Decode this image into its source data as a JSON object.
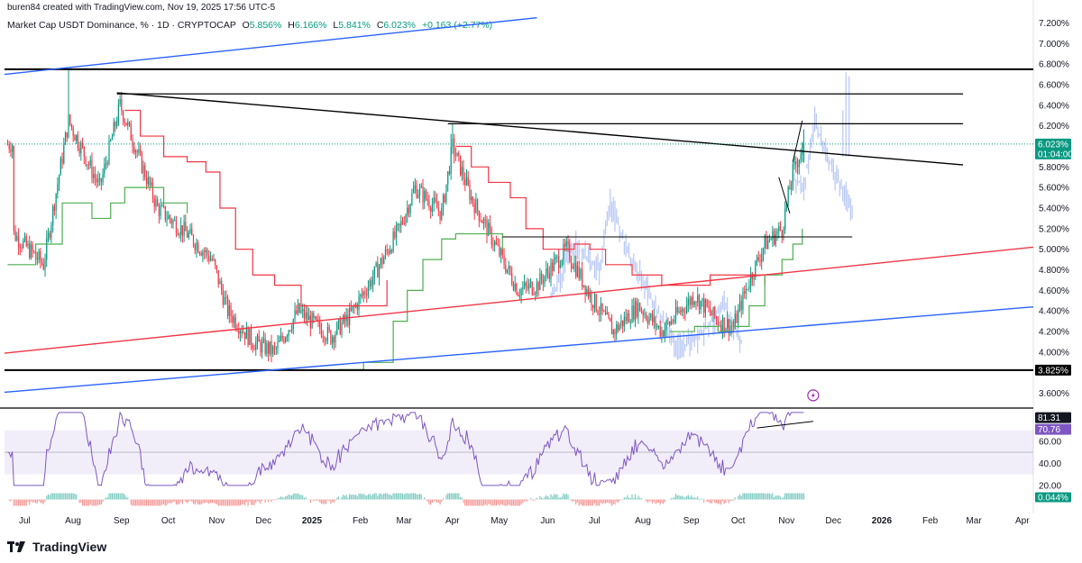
{
  "header": {
    "attribution": "buren84 created with TradingView.com, Nov 19, 2025 17:56 UTC-5"
  },
  "legend": {
    "symbol": "Market Cap USDT Dominance, % · 1D · CRYPTOCAP",
    "open_label": "O",
    "open": "5.856%",
    "high_label": "H",
    "high": "6.166%",
    "low_label": "L",
    "low": "5.841%",
    "close_label": "C",
    "close": "6.023%",
    "change": "+0.163 (+2.77%)"
  },
  "price_axis": {
    "ticks": [
      "7.200%",
      "7.000%",
      "6.800%",
      "6.600%",
      "6.400%",
      "6.200%",
      "6.000%",
      "5.800%",
      "5.600%",
      "5.400%",
      "5.200%",
      "5.000%",
      "4.800%",
      "4.600%",
      "4.400%",
      "4.200%",
      "4.000%",
      "3.600%"
    ],
    "current_price": "6.023%",
    "countdown": "01:04:00",
    "support_label": "3.825%"
  },
  "rsi_axis": {
    "ticks": [
      "60.00",
      "40.00",
      "20.00"
    ],
    "upper_label": "81.31",
    "current": "70.76"
  },
  "macd_axis": {
    "current": "0.044%"
  },
  "time_axis": [
    "Jul",
    "Aug",
    "Sep",
    "Oct",
    "Nov",
    "Dec",
    "2025",
    "Feb",
    "Mar",
    "Apr",
    "May",
    "Jun",
    "Jul",
    "Aug",
    "Sep",
    "Oct",
    "Nov",
    "Dec",
    "2026",
    "Feb",
    "Mar",
    "Apr"
  ],
  "brand": {
    "name": "TradingView"
  },
  "colors": {
    "up": "#089981",
    "down": "#f23645",
    "supertrend_down": "#f23645",
    "supertrend_up": "#4caf50",
    "channel": "#2962ff",
    "rsi": "#7e57c2",
    "projection": "#b8c8f5"
  },
  "chart_data": {
    "type": "candlestick",
    "series_name": "Market Cap USDT Dominance, %",
    "unit": "%",
    "ylim": [
      3.5,
      7.3
    ],
    "x_range": [
      "2024-07",
      "2026-04"
    ],
    "price_path": [
      {
        "date": "2024-07-01",
        "value": 5.15
      },
      {
        "date": "2024-07-20",
        "value": 4.85
      },
      {
        "date": "2024-08-05",
        "value": 6.25
      },
      {
        "date": "2024-08-25",
        "value": 5.6
      },
      {
        "date": "2024-09-07",
        "value": 6.4
      },
      {
        "date": "2024-10-01",
        "value": 5.4
      },
      {
        "date": "2024-10-20",
        "value": 5.15
      },
      {
        "date": "2024-11-05",
        "value": 4.9
      },
      {
        "date": "2024-11-15",
        "value": 4.4
      },
      {
        "date": "2024-12-01",
        "value": 4.1
      },
      {
        "date": "2024-12-15",
        "value": 4.0
      },
      {
        "date": "2024-12-30",
        "value": 4.4
      },
      {
        "date": "2025-01-20",
        "value": 4.15
      },
      {
        "date": "2025-02-01",
        "value": 4.35
      },
      {
        "date": "2025-02-15",
        "value": 4.7
      },
      {
        "date": "2025-03-05",
        "value": 5.2
      },
      {
        "date": "2025-03-15",
        "value": 5.6
      },
      {
        "date": "2025-04-01",
        "value": 5.35
      },
      {
        "date": "2025-04-08",
        "value": 6.0
      },
      {
        "date": "2025-04-20",
        "value": 5.5
      },
      {
        "date": "2025-05-05",
        "value": 5.05
      },
      {
        "date": "2025-05-20",
        "value": 4.6
      },
      {
        "date": "2025-06-01",
        "value": 4.65
      },
      {
        "date": "2025-06-20",
        "value": 5.0
      },
      {
        "date": "2025-07-05",
        "value": 4.55
      },
      {
        "date": "2025-07-20",
        "value": 4.2
      },
      {
        "date": "2025-08-05",
        "value": 4.45
      },
      {
        "date": "2025-08-20",
        "value": 4.2
      },
      {
        "date": "2025-09-10",
        "value": 4.55
      },
      {
        "date": "2025-09-25",
        "value": 4.3
      },
      {
        "date": "2025-10-05",
        "value": 4.25
      },
      {
        "date": "2025-10-15",
        "value": 4.7
      },
      {
        "date": "2025-10-25",
        "value": 5.05
      },
      {
        "date": "2025-11-05",
        "value": 5.2
      },
      {
        "date": "2025-11-12",
        "value": 5.75
      },
      {
        "date": "2025-11-19",
        "value": 6.02
      }
    ],
    "last_bar": {
      "open": 5.856,
      "high": 6.166,
      "low": 5.841,
      "close": 6.023,
      "change": 0.163,
      "change_pct": 2.77
    },
    "horizontal_levels": [
      6.75,
      6.51,
      6.22,
      5.12,
      3.825
    ],
    "trendlines": [
      {
        "name": "descending-resistance",
        "from": {
          "date": "2024-09-05",
          "value": 6.52
        },
        "to": {
          "date": "2026-03-01",
          "value": 5.82
        }
      },
      {
        "name": "red-mid-channel",
        "from": {
          "date": "2024-06-25",
          "value": 3.99
        },
        "to": {
          "date": "2026-04-15",
          "value": 5.02
        }
      },
      {
        "name": "blue-lower-channel",
        "from": {
          "date": "2024-06-25",
          "value": 3.61
        },
        "to": {
          "date": "2026-04-15",
          "value": 4.44
        }
      },
      {
        "name": "blue-upper-channel",
        "from": {
          "date": "2024-06-25",
          "value": 6.7
        },
        "to": {
          "date": "2025-06-01",
          "value": 7.25
        }
      }
    ],
    "rsi": {
      "ylim": [
        15,
        90
      ],
      "band": [
        30,
        70
      ],
      "upper_line": 81.31,
      "current": 70.76
    },
    "macd_histogram": {
      "current": 0.044
    }
  }
}
